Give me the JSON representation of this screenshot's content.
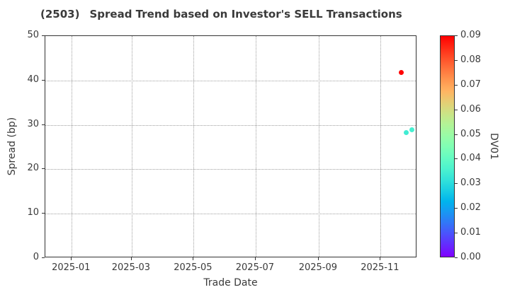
{
  "chart": {
    "title_ticker": "(2503)",
    "title_text": "Spread Trend based on Investor's SELL Transactions",
    "xlabel": "Trade Date",
    "ylabel": "Spread (bp)",
    "colorbar_label": "DV01"
  },
  "appearance": {
    "background": "#ffffff",
    "text_color": "#3a3a3a",
    "spine_color": "#333333",
    "grid_color": "#9f9f9f",
    "grid_style": "dotted",
    "colormap": "rainbow"
  },
  "chart_data": {
    "type": "scatter",
    "title": "(2503)   Spread Trend based on Investor's SELL Transactions",
    "xlabel": "Trade Date",
    "ylabel": "Spread (bp)",
    "ylim": [
      0,
      50
    ],
    "xlim": [
      "2024-12-06",
      "2025-12-07"
    ],
    "grid": true,
    "x_ticks": [
      {
        "date": "2025-01-01",
        "label": "2025-01"
      },
      {
        "date": "2025-03-01",
        "label": "2025-03"
      },
      {
        "date": "2025-05-01",
        "label": "2025-05"
      },
      {
        "date": "2025-07-01",
        "label": "2025-07"
      },
      {
        "date": "2025-09-01",
        "label": "2025-09"
      },
      {
        "date": "2025-11-01",
        "label": "2025-11"
      }
    ],
    "y_ticks": [
      0,
      10,
      20,
      30,
      40,
      50
    ],
    "colorbar": {
      "label": "DV01",
      "min": 0.0,
      "max": 0.09,
      "ticks": [
        0.0,
        0.01,
        0.02,
        0.03,
        0.04,
        0.05,
        0.06,
        0.07,
        0.08,
        0.09
      ],
      "colormap": "rainbow"
    },
    "points": [
      {
        "date": "2025-11-21",
        "spread": 41.8,
        "dv01": 0.09
      },
      {
        "date": "2025-11-26",
        "spread": 28.2,
        "dv01": 0.034
      },
      {
        "date": "2025-12-02",
        "spread": 28.9,
        "dv01": 0.035
      }
    ]
  }
}
